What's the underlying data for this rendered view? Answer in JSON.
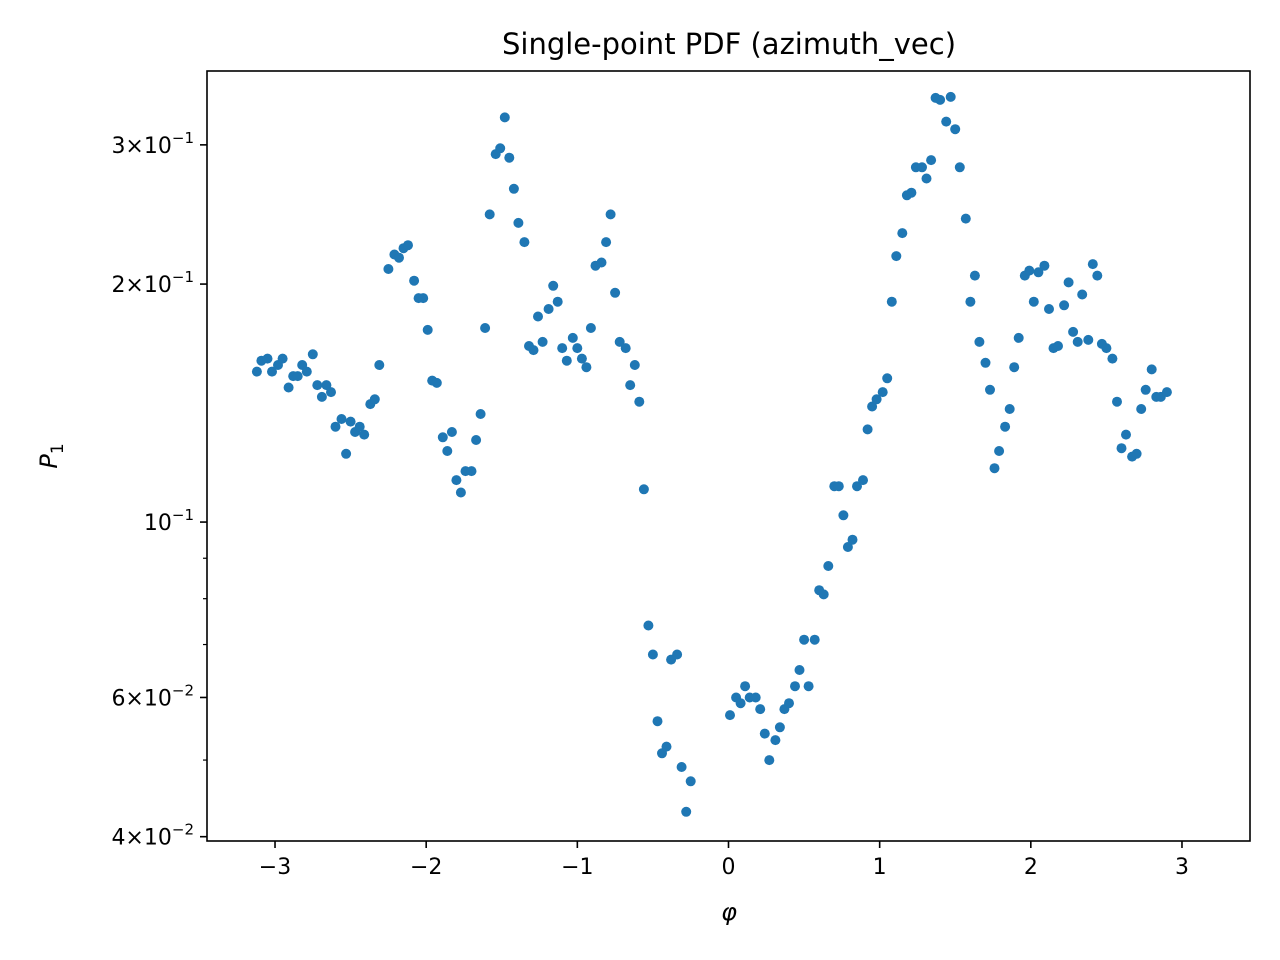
{
  "chart_data": {
    "type": "scatter",
    "title": "Single-point PDF (azimuth_vec)",
    "xlabel": "φ",
    "ylabel": "P",
    "ylabel_sub": "1",
    "yscale": "log",
    "xlim": [
      -3.45,
      3.45
    ],
    "ylim": [
      0.0395,
      0.372
    ],
    "grid": false,
    "marker_color": "#1f77b4",
    "x_ticks": [
      {
        "value": -3,
        "label": "−3"
      },
      {
        "value": -2,
        "label": "−2"
      },
      {
        "value": -1,
        "label": "−1"
      },
      {
        "value": 0,
        "label": "0"
      },
      {
        "value": 1,
        "label": "1"
      },
      {
        "value": 2,
        "label": "2"
      },
      {
        "value": 3,
        "label": "3"
      }
    ],
    "y_ticks": [
      {
        "value": 0.04,
        "mant": "4",
        "exp": "−2"
      },
      {
        "value": 0.06,
        "mant": "6",
        "exp": "−2"
      },
      {
        "value": 0.1,
        "mant": "",
        "exp": "−1"
      },
      {
        "value": 0.2,
        "mant": "2",
        "exp": "−1"
      },
      {
        "value": 0.3,
        "mant": "3",
        "exp": "−1"
      }
    ],
    "y_minor_ticks": [
      0.05,
      0.07,
      0.08,
      0.09
    ],
    "points": [
      [
        -3.12,
        0.155
      ],
      [
        -3.09,
        0.16
      ],
      [
        -3.05,
        0.161
      ],
      [
        -3.02,
        0.155
      ],
      [
        -2.98,
        0.158
      ],
      [
        -2.95,
        0.161
      ],
      [
        -2.91,
        0.148
      ],
      [
        -2.88,
        0.153
      ],
      [
        -2.85,
        0.153
      ],
      [
        -2.82,
        0.158
      ],
      [
        -2.79,
        0.155
      ],
      [
        -2.75,
        0.163
      ],
      [
        -2.72,
        0.149
      ],
      [
        -2.69,
        0.144
      ],
      [
        -2.66,
        0.149
      ],
      [
        -2.63,
        0.146
      ],
      [
        -2.6,
        0.132
      ],
      [
        -2.56,
        0.135
      ],
      [
        -2.53,
        0.122
      ],
      [
        -2.5,
        0.134
      ],
      [
        -2.47,
        0.13
      ],
      [
        -2.44,
        0.132
      ],
      [
        -2.41,
        0.129
      ],
      [
        -2.37,
        0.141
      ],
      [
        -2.34,
        0.143
      ],
      [
        -2.31,
        0.158
      ],
      [
        -2.25,
        0.209
      ],
      [
        -2.21,
        0.218
      ],
      [
        -2.18,
        0.216
      ],
      [
        -2.15,
        0.222
      ],
      [
        -2.12,
        0.224
      ],
      [
        -2.08,
        0.202
      ],
      [
        -2.05,
        0.192
      ],
      [
        -2.02,
        0.192
      ],
      [
        -1.99,
        0.175
      ],
      [
        -1.96,
        0.151
      ],
      [
        -1.93,
        0.15
      ],
      [
        -1.89,
        0.128
      ],
      [
        -1.86,
        0.123
      ],
      [
        -1.83,
        0.13
      ],
      [
        -1.8,
        0.113
      ],
      [
        -1.77,
        0.109
      ],
      [
        -1.74,
        0.116
      ],
      [
        -1.7,
        0.116
      ],
      [
        -1.67,
        0.127
      ],
      [
        -1.64,
        0.137
      ],
      [
        -1.61,
        0.176
      ],
      [
        -1.58,
        0.245
      ],
      [
        -1.54,
        0.292
      ],
      [
        -1.51,
        0.297
      ],
      [
        -1.48,
        0.325
      ],
      [
        -1.45,
        0.289
      ],
      [
        -1.42,
        0.264
      ],
      [
        -1.39,
        0.239
      ],
      [
        -1.35,
        0.226
      ],
      [
        -1.32,
        0.167
      ],
      [
        -1.29,
        0.165
      ],
      [
        -1.26,
        0.182
      ],
      [
        -1.23,
        0.169
      ],
      [
        -1.19,
        0.186
      ],
      [
        -1.16,
        0.199
      ],
      [
        -1.13,
        0.19
      ],
      [
        -1.1,
        0.166
      ],
      [
        -1.07,
        0.16
      ],
      [
        -1.03,
        0.171
      ],
      [
        -1.0,
        0.166
      ],
      [
        -0.97,
        0.161
      ],
      [
        -0.94,
        0.157
      ],
      [
        -0.91,
        0.176
      ],
      [
        -0.88,
        0.211
      ],
      [
        -0.84,
        0.213
      ],
      [
        -0.81,
        0.226
      ],
      [
        -0.78,
        0.245
      ],
      [
        -0.75,
        0.195
      ],
      [
        -0.72,
        0.169
      ],
      [
        -0.68,
        0.166
      ],
      [
        -0.65,
        0.149
      ],
      [
        -0.62,
        0.158
      ],
      [
        -0.59,
        0.142
      ],
      [
        -0.56,
        0.11
      ],
      [
        -0.53,
        0.074
      ],
      [
        -0.5,
        0.068
      ],
      [
        -0.47,
        0.056
      ],
      [
        -0.44,
        0.051
      ],
      [
        -0.41,
        0.052
      ],
      [
        -0.38,
        0.067
      ],
      [
        -0.34,
        0.068
      ],
      [
        -0.31,
        0.049
      ],
      [
        -0.28,
        0.043
      ],
      [
        -0.25,
        0.047
      ],
      [
        0.01,
        0.057
      ],
      [
        0.05,
        0.06
      ],
      [
        0.08,
        0.059
      ],
      [
        0.11,
        0.062
      ],
      [
        0.14,
        0.06
      ],
      [
        0.18,
        0.06
      ],
      [
        0.21,
        0.058
      ],
      [
        0.24,
        0.054
      ],
      [
        0.27,
        0.05
      ],
      [
        0.31,
        0.053
      ],
      [
        0.34,
        0.055
      ],
      [
        0.37,
        0.058
      ],
      [
        0.4,
        0.059
      ],
      [
        0.44,
        0.062
      ],
      [
        0.47,
        0.065
      ],
      [
        0.5,
        0.071
      ],
      [
        0.53,
        0.062
      ],
      [
        0.57,
        0.071
      ],
      [
        0.6,
        0.082
      ],
      [
        0.63,
        0.081
      ],
      [
        0.66,
        0.088
      ],
      [
        0.7,
        0.111
      ],
      [
        0.73,
        0.111
      ],
      [
        0.76,
        0.102
      ],
      [
        0.79,
        0.093
      ],
      [
        0.82,
        0.095
      ],
      [
        0.85,
        0.111
      ],
      [
        0.89,
        0.113
      ],
      [
        0.92,
        0.131
      ],
      [
        0.95,
        0.14
      ],
      [
        0.98,
        0.143
      ],
      [
        1.02,
        0.146
      ],
      [
        1.05,
        0.152
      ],
      [
        1.08,
        0.19
      ],
      [
        1.11,
        0.217
      ],
      [
        1.15,
        0.232
      ],
      [
        1.18,
        0.259
      ],
      [
        1.21,
        0.261
      ],
      [
        1.24,
        0.281
      ],
      [
        1.28,
        0.281
      ],
      [
        1.31,
        0.272
      ],
      [
        1.34,
        0.287
      ],
      [
        1.37,
        0.344
      ],
      [
        1.4,
        0.342
      ],
      [
        1.44,
        0.321
      ],
      [
        1.47,
        0.345
      ],
      [
        1.5,
        0.314
      ],
      [
        1.53,
        0.281
      ],
      [
        1.57,
        0.242
      ],
      [
        1.6,
        0.19
      ],
      [
        1.63,
        0.205
      ],
      [
        1.66,
        0.169
      ],
      [
        1.7,
        0.159
      ],
      [
        1.73,
        0.147
      ],
      [
        1.76,
        0.117
      ],
      [
        1.79,
        0.123
      ],
      [
        1.83,
        0.132
      ],
      [
        1.86,
        0.139
      ],
      [
        1.89,
        0.157
      ],
      [
        1.92,
        0.171
      ],
      [
        1.96,
        0.205
      ],
      [
        1.99,
        0.208
      ],
      [
        2.02,
        0.19
      ],
      [
        2.05,
        0.207
      ],
      [
        2.09,
        0.211
      ],
      [
        2.12,
        0.186
      ],
      [
        2.15,
        0.166
      ],
      [
        2.18,
        0.167
      ],
      [
        2.22,
        0.188
      ],
      [
        2.25,
        0.201
      ],
      [
        2.28,
        0.174
      ],
      [
        2.31,
        0.169
      ],
      [
        2.34,
        0.194
      ],
      [
        2.38,
        0.17
      ],
      [
        2.41,
        0.212
      ],
      [
        2.44,
        0.205
      ],
      [
        2.47,
        0.168
      ],
      [
        2.5,
        0.166
      ],
      [
        2.54,
        0.161
      ],
      [
        2.57,
        0.142
      ],
      [
        2.6,
        0.124
      ],
      [
        2.63,
        0.129
      ],
      [
        2.67,
        0.121
      ],
      [
        2.7,
        0.122
      ],
      [
        2.73,
        0.139
      ],
      [
        2.76,
        0.147
      ],
      [
        2.8,
        0.156
      ],
      [
        2.83,
        0.144
      ],
      [
        2.86,
        0.144
      ],
      [
        2.9,
        0.146
      ]
    ]
  }
}
